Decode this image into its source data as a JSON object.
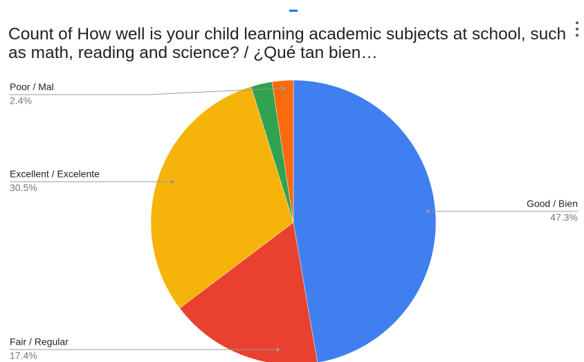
{
  "chart_data": {
    "type": "pie",
    "title": "Count of How well is your child learning academic subjects at school, such as math, reading and science? / ¿Qué tan bien…",
    "categories": [
      "Good / Bien",
      "Fair / Regular",
      "Excellent / Excelente",
      null,
      "Poor / Mal"
    ],
    "values": [
      47.3,
      17.4,
      30.5,
      2.4,
      2.4
    ],
    "value_labels": [
      "47.3%",
      "17.4%",
      "30.5%",
      null,
      "2.4%"
    ],
    "colors": [
      "#3f7ff0",
      "#e8412f",
      "#f6b40b",
      "#31a24f",
      "#fa6b0f"
    ]
  }
}
